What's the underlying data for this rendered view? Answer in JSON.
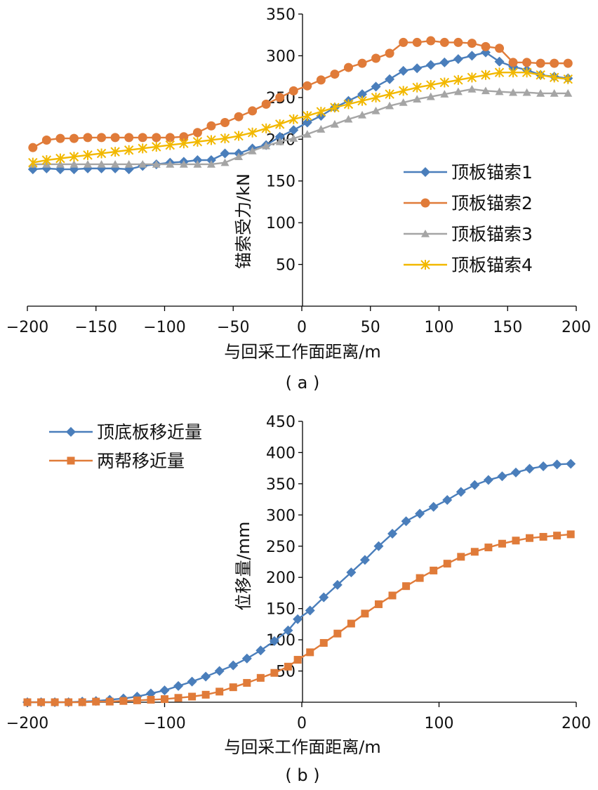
{
  "chart_data": [
    {
      "type": "line",
      "panel_label": "( a )",
      "xlabel": "与回采工作面距离/m",
      "ylabel": "锚索受力/kN",
      "xlim": [
        -200,
        200
      ],
      "ylim": [
        0,
        350
      ],
      "xticks": [
        -200,
        -150,
        -100,
        -50,
        0,
        50,
        100,
        150,
        200
      ],
      "yticks": [
        50,
        100,
        150,
        200,
        250,
        300,
        350
      ],
      "x_tick_labels": [
        "−200",
        "−150",
        "−100",
        "−50",
        "0",
        "50",
        "100",
        "150",
        "200"
      ],
      "y_tick_labels": [
        "50",
        "100",
        "150",
        "200",
        "250",
        "300",
        "350"
      ],
      "legend_position": "center-right",
      "grid": false,
      "series": [
        {
          "name": "顶板锚索1",
          "color": "#4a7ebb",
          "marker": "diamond",
          "x": [
            -196,
            -186,
            -176,
            -166,
            -156,
            -146,
            -136,
            -126,
            -116,
            -106,
            -96,
            -86,
            -76,
            -66,
            -56,
            -46,
            -36,
            -26,
            -16,
            -6,
            4,
            14,
            24,
            34,
            44,
            54,
            64,
            74,
            84,
            94,
            104,
            114,
            124,
            134,
            144,
            154,
            164,
            174,
            184,
            194
          ],
          "y": [
            164,
            165,
            164,
            164,
            165,
            165,
            165,
            164,
            168,
            170,
            172,
            173,
            175,
            175,
            183,
            183,
            189,
            193,
            203,
            211,
            220,
            228,
            238,
            246,
            254,
            263,
            272,
            282,
            285,
            289,
            292,
            296,
            300,
            304,
            293,
            287,
            283,
            277,
            275,
            273
          ]
        },
        {
          "name": "顶板锚索2",
          "color": "#e07b39",
          "marker": "circle",
          "x": [
            -196,
            -186,
            -176,
            -166,
            -156,
            -146,
            -136,
            -126,
            -116,
            -106,
            -96,
            -86,
            -76,
            -66,
            -56,
            -46,
            -36,
            -26,
            -16,
            -6,
            4,
            14,
            24,
            34,
            44,
            54,
            64,
            74,
            84,
            94,
            104,
            114,
            124,
            134,
            144,
            154,
            164,
            174,
            184,
            194
          ],
          "y": [
            190,
            199,
            201,
            201,
            202,
            202,
            202,
            202,
            202,
            202,
            202,
            203,
            208,
            216,
            220,
            227,
            234,
            242,
            250,
            258,
            264,
            271,
            278,
            286,
            291,
            297,
            303,
            316,
            316,
            318,
            316,
            316,
            315,
            311,
            309,
            292,
            292,
            291,
            291,
            291
          ]
        },
        {
          "name": "顶板锚索3",
          "color": "#a5a5a5",
          "marker": "triangle",
          "x": [
            -196,
            -186,
            -176,
            -166,
            -156,
            -146,
            -136,
            -126,
            -116,
            -106,
            -96,
            -86,
            -76,
            -66,
            -56,
            -46,
            -36,
            -26,
            -16,
            -6,
            4,
            14,
            24,
            34,
            44,
            54,
            64,
            74,
            84,
            94,
            104,
            114,
            124,
            134,
            144,
            154,
            164,
            174,
            184,
            194
          ],
          "y": [
            170,
            170,
            170,
            170,
            170,
            170,
            170,
            170,
            170,
            170,
            170,
            170,
            170,
            170,
            172,
            179,
            186,
            192,
            197,
            201,
            206,
            212,
            218,
            224,
            229,
            234,
            240,
            244,
            248,
            251,
            254,
            257,
            260,
            258,
            257,
            256,
            256,
            255,
            255,
            255
          ]
        },
        {
          "name": "顶板锚索4",
          "color": "#f2b800",
          "marker": "star",
          "x": [
            -196,
            -186,
            -176,
            -166,
            -156,
            -146,
            -136,
            -126,
            -116,
            -106,
            -96,
            -86,
            -76,
            -66,
            -56,
            -46,
            -36,
            -26,
            -16,
            -6,
            4,
            14,
            24,
            34,
            44,
            54,
            64,
            74,
            84,
            94,
            104,
            114,
            124,
            134,
            144,
            154,
            164,
            174,
            184,
            194
          ],
          "y": [
            172,
            175,
            177,
            179,
            181,
            183,
            185,
            187,
            189,
            191,
            193,
            195,
            197,
            199,
            201,
            204,
            208,
            213,
            218,
            224,
            228,
            233,
            238,
            242,
            246,
            250,
            254,
            258,
            262,
            265,
            268,
            271,
            274,
            277,
            280,
            280,
            280,
            277,
            274,
            272
          ]
        }
      ]
    },
    {
      "type": "line",
      "panel_label": "( b )",
      "xlabel": "与回采工作面距离/m",
      "ylabel": "位移量/mm",
      "xlim": [
        -200,
        200
      ],
      "ylim": [
        0,
        450
      ],
      "xticks": [
        -200,
        -100,
        0,
        100,
        200
      ],
      "yticks": [
        50,
        100,
        150,
        200,
        250,
        300,
        350,
        400,
        450
      ],
      "x_tick_labels": [
        "−200",
        "−100",
        "0",
        "100",
        "200"
      ],
      "y_tick_labels": [
        "50",
        "100",
        "150",
        "200",
        "250",
        "300",
        "350",
        "400",
        "450"
      ],
      "legend_position": "top-left",
      "grid": false,
      "series": [
        {
          "name": "顶底板移近量",
          "color": "#4a7ebb",
          "marker": "diamond",
          "x": [
            -200,
            -190,
            -180,
            -170,
            -160,
            -150,
            -140,
            -130,
            -120,
            -110,
            -100,
            -90,
            -80,
            -70,
            -60,
            -50,
            -40,
            -30,
            -20,
            -10,
            -3,
            6,
            16,
            26,
            36,
            46,
            56,
            66,
            76,
            86,
            96,
            106,
            116,
            126,
            136,
            146,
            156,
            166,
            176,
            186,
            196
          ],
          "y": [
            0,
            0,
            0,
            0,
            1,
            2,
            4,
            6,
            9,
            14,
            19,
            26,
            33,
            41,
            50,
            59,
            70,
            83,
            98,
            115,
            133,
            147,
            168,
            188,
            208,
            228,
            250,
            270,
            290,
            302,
            313,
            324,
            337,
            348,
            356,
            362,
            368,
            374,
            378,
            381,
            382
          ]
        },
        {
          "name": "两帮移近量",
          "color": "#e07b39",
          "marker": "square",
          "x": [
            -200,
            -190,
            -180,
            -170,
            -160,
            -150,
            -140,
            -130,
            -120,
            -110,
            -100,
            -90,
            -80,
            -70,
            -60,
            -50,
            -40,
            -30,
            -20,
            -10,
            -3,
            6,
            16,
            26,
            36,
            46,
            56,
            66,
            76,
            86,
            96,
            106,
            116,
            126,
            136,
            146,
            156,
            166,
            176,
            186,
            196
          ],
          "y": [
            0,
            0,
            0,
            0,
            0,
            1,
            1,
            2,
            3,
            4,
            5,
            7,
            9,
            12,
            17,
            24,
            31,
            39,
            47,
            57,
            68,
            80,
            95,
            110,
            126,
            142,
            157,
            171,
            186,
            199,
            211,
            222,
            233,
            241,
            248,
            254,
            259,
            263,
            265,
            267,
            269
          ]
        }
      ]
    }
  ]
}
